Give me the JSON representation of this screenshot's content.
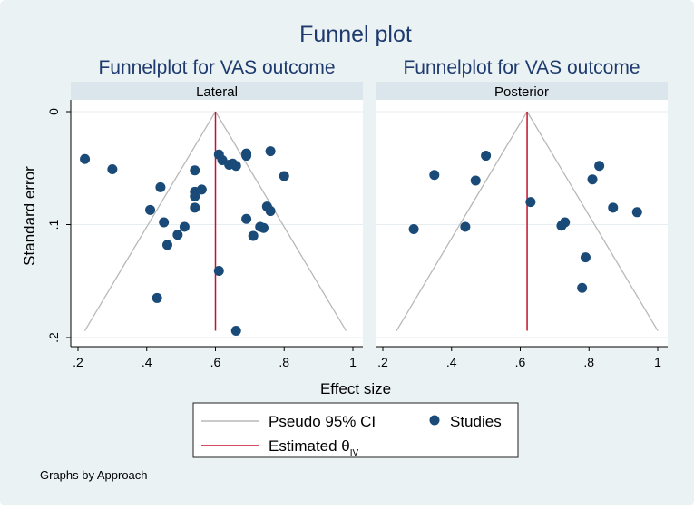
{
  "figure_title": "Funnel plot",
  "y_axis_label": "Standard error",
  "x_axis_label": "Effect size",
  "note": "Graphs by Approach",
  "legend": {
    "ci_label": "Pseudo 95% CI",
    "studies_label": "Studies",
    "estimate_label": "Estimated θ",
    "estimate_subscript": "IV"
  },
  "colors": {
    "background": "#eaf2f3",
    "plot_area": "#ffffff",
    "strip": "#dbe5ec",
    "title": "#1e3a6e",
    "points": "#1a4a78",
    "ci_lines": "#b8b8b8",
    "estimate_line": "#c8102e",
    "grid": "#e6eef2"
  },
  "chart_data": [
    {
      "type": "scatter",
      "title": "Funnelplot for VAS outcome",
      "panel_label": "Lateral",
      "xlabel": "Effect size",
      "ylabel": "Standard error",
      "xlim": [
        0.2,
        1.0
      ],
      "ylim": [
        0.2,
        0
      ],
      "x_ticks": [
        ".2",
        ".4",
        ".6",
        ".8",
        "1"
      ],
      "y_ticks": [
        "0",
        ".1",
        ".2"
      ],
      "estimate": 0.6,
      "ci_max_se": 0.194,
      "points": [
        {
          "x": 0.22,
          "y": 0.042
        },
        {
          "x": 0.3,
          "y": 0.051
        },
        {
          "x": 0.41,
          "y": 0.087
        },
        {
          "x": 0.44,
          "y": 0.067
        },
        {
          "x": 0.45,
          "y": 0.098
        },
        {
          "x": 0.46,
          "y": 0.118
        },
        {
          "x": 0.43,
          "y": 0.165
        },
        {
          "x": 0.49,
          "y": 0.109
        },
        {
          "x": 0.51,
          "y": 0.102
        },
        {
          "x": 0.54,
          "y": 0.052
        },
        {
          "x": 0.54,
          "y": 0.071
        },
        {
          "x": 0.54,
          "y": 0.075
        },
        {
          "x": 0.56,
          "y": 0.069
        },
        {
          "x": 0.54,
          "y": 0.085
        },
        {
          "x": 0.61,
          "y": 0.038
        },
        {
          "x": 0.62,
          "y": 0.043
        },
        {
          "x": 0.64,
          "y": 0.047
        },
        {
          "x": 0.65,
          "y": 0.046
        },
        {
          "x": 0.66,
          "y": 0.048
        },
        {
          "x": 0.69,
          "y": 0.037
        },
        {
          "x": 0.69,
          "y": 0.039
        },
        {
          "x": 0.76,
          "y": 0.035
        },
        {
          "x": 0.8,
          "y": 0.057
        },
        {
          "x": 0.69,
          "y": 0.095
        },
        {
          "x": 0.71,
          "y": 0.11
        },
        {
          "x": 0.73,
          "y": 0.102
        },
        {
          "x": 0.74,
          "y": 0.103
        },
        {
          "x": 0.75,
          "y": 0.084
        },
        {
          "x": 0.76,
          "y": 0.088
        },
        {
          "x": 0.61,
          "y": 0.141
        },
        {
          "x": 0.66,
          "y": 0.194
        }
      ]
    },
    {
      "type": "scatter",
      "title": "Funnelplot for VAS outcome",
      "panel_label": "Posterior",
      "xlabel": "Effect size",
      "ylabel": "Standard error",
      "xlim": [
        0.2,
        1.0
      ],
      "ylim": [
        0.2,
        0
      ],
      "x_ticks": [
        ".2",
        ".4",
        ".6",
        ".8",
        "1"
      ],
      "y_ticks": [
        "0",
        ".1",
        ".2"
      ],
      "estimate": 0.62,
      "ci_max_se": 0.194,
      "points": [
        {
          "x": 0.29,
          "y": 0.104
        },
        {
          "x": 0.35,
          "y": 0.056
        },
        {
          "x": 0.44,
          "y": 0.102
        },
        {
          "x": 0.47,
          "y": 0.061
        },
        {
          "x": 0.5,
          "y": 0.039
        },
        {
          "x": 0.63,
          "y": 0.08
        },
        {
          "x": 0.72,
          "y": 0.101
        },
        {
          "x": 0.73,
          "y": 0.098
        },
        {
          "x": 0.78,
          "y": 0.156
        },
        {
          "x": 0.79,
          "y": 0.129
        },
        {
          "x": 0.81,
          "y": 0.06
        },
        {
          "x": 0.83,
          "y": 0.048
        },
        {
          "x": 0.87,
          "y": 0.085
        },
        {
          "x": 0.94,
          "y": 0.089
        }
      ]
    }
  ]
}
